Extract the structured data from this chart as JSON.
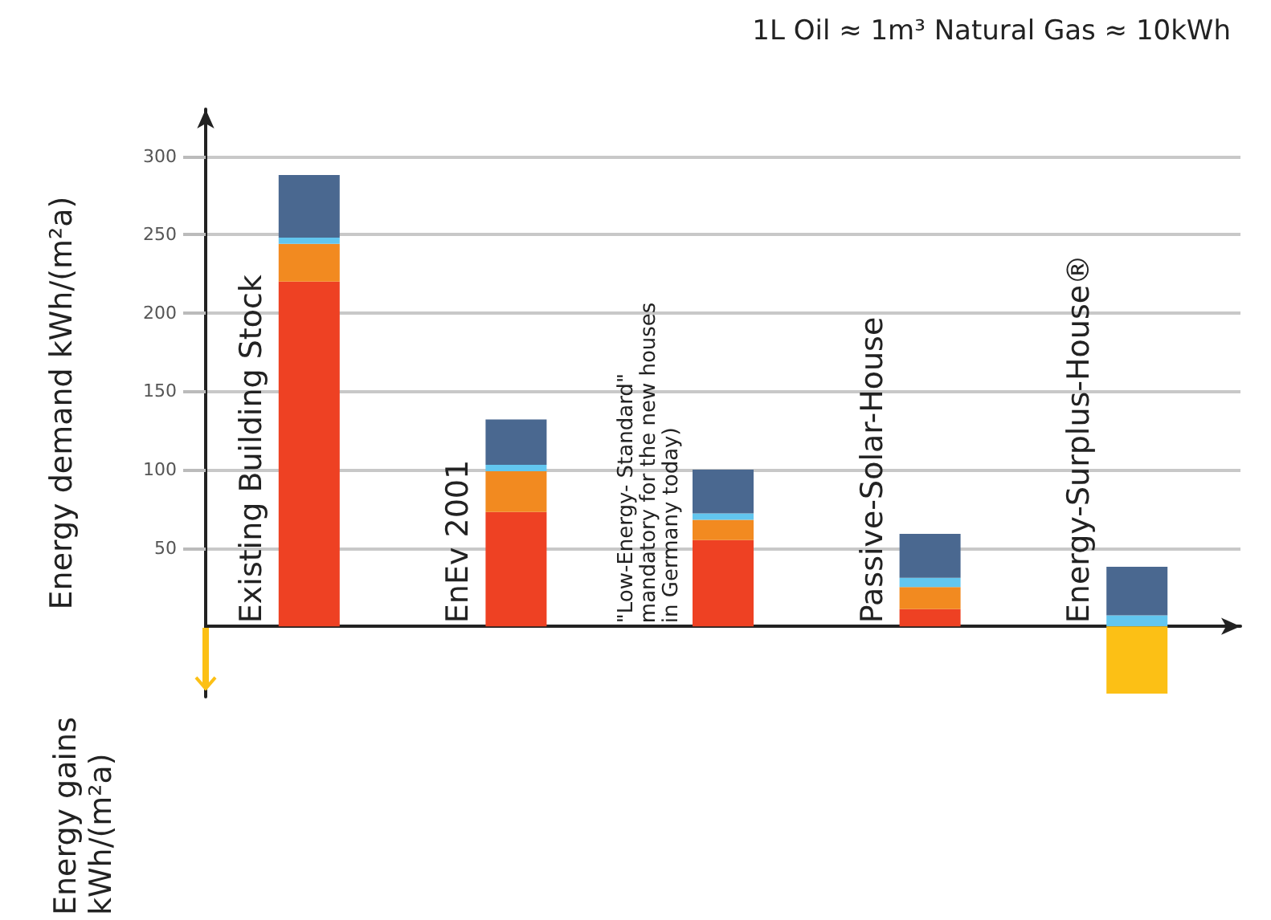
{
  "chart_data": {
    "type": "bar",
    "stacked": true,
    "title": "1L Oil ≈ 1m³ Natural Gas ≈ 10kWh",
    "ylabel": "Energy demand kWh/(m²a)",
    "annotations": [
      "Energy gains\nkWh/(m²a)"
    ],
    "categories": [
      "Existing Building Stock",
      "EnEv 2001",
      "\"Low-Energy- Standard\"\nmandatory for the new houses\nin Germany today)",
      "Passive-Solar-House",
      "Energy-Surplus-House®"
    ],
    "series": [
      {
        "color": "#ee4123",
        "values": [
          220,
          73,
          55,
          11,
          null
        ]
      },
      {
        "color": "#f28a20",
        "values": [
          24,
          26,
          13,
          14,
          null
        ]
      },
      {
        "color": "#62c6ef",
        "values": [
          4,
          4,
          4,
          6,
          7
        ]
      },
      {
        "color": "#4a6890",
        "values": [
          40,
          29,
          28,
          28,
          31
        ]
      },
      {
        "color": "#fcc015",
        "values": [
          null,
          null,
          null,
          null,
          -43
        ]
      }
    ],
    "ylim": [
      -45,
      330
    ],
    "yticks": [
      50,
      100,
      150,
      200,
      250,
      300
    ],
    "grid": "y"
  }
}
